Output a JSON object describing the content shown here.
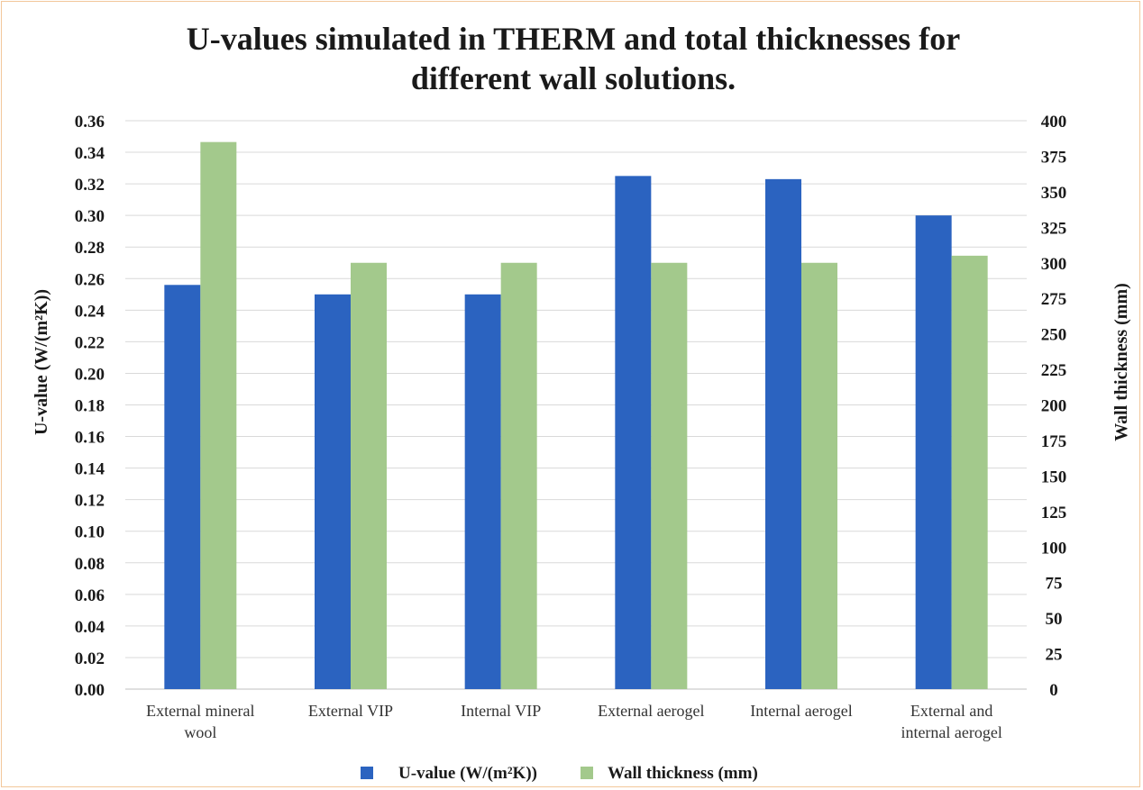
{
  "chart_data": {
    "type": "bar",
    "title_lines": [
      "U-values  simulated in THERM and total thicknesses for",
      "different wall solutions."
    ],
    "categories": [
      [
        "External mineral",
        "wool"
      ],
      [
        "External VIP"
      ],
      [
        "Internal VIP"
      ],
      [
        "External aerogel"
      ],
      [
        "Internal aerogel"
      ],
      [
        "External and",
        "internal aerogel"
      ]
    ],
    "series": [
      {
        "name": "U-value (W/(m²K))",
        "axis": "left",
        "color": "#2b63c0",
        "values": [
          0.256,
          0.25,
          0.25,
          0.325,
          0.323,
          0.3
        ]
      },
      {
        "name": "Wall thickness (mm)",
        "axis": "right",
        "color": "#a3c98c",
        "values": [
          385,
          300,
          300,
          300,
          300,
          305
        ]
      }
    ],
    "ylabel_left": "U-value (W/(m²K))",
    "ylabel_right": "Wall thickness (mm)",
    "ylim_left": [
      0,
      0.36
    ],
    "ylim_right": [
      0,
      400
    ],
    "yticks_left": [
      "0.00",
      "0.02",
      "0.04",
      "0.06",
      "0.08",
      "0.10",
      "0.12",
      "0.14",
      "0.16",
      "0.18",
      "0.20",
      "0.22",
      "0.24",
      "0.26",
      "0.28",
      "0.30",
      "0.32",
      "0.34",
      "0.36"
    ],
    "yticks_right": [
      "0",
      "25",
      "50",
      "75",
      "100",
      "125",
      "150",
      "175",
      "200",
      "225",
      "250",
      "275",
      "300",
      "325",
      "350",
      "375",
      "400"
    ],
    "grid": true,
    "legend_position": "bottom"
  }
}
